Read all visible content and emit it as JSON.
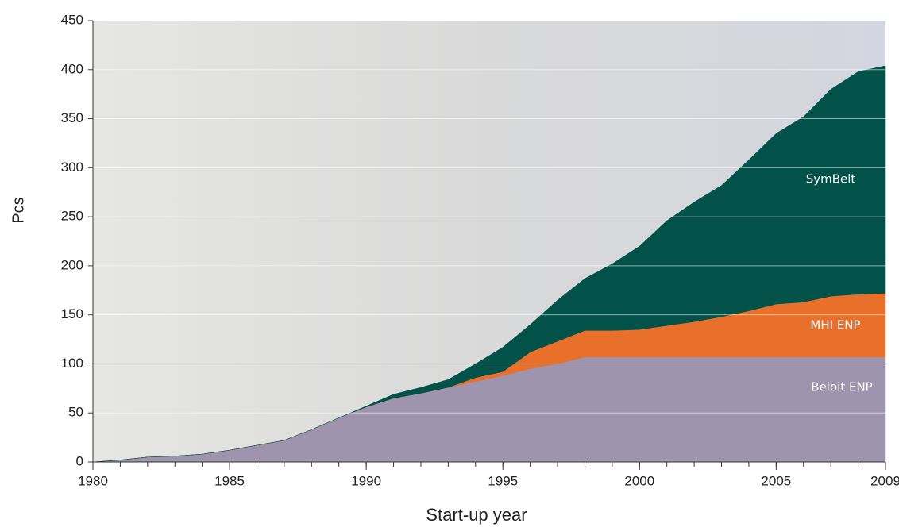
{
  "chart_data": {
    "type": "stacked_area",
    "x_label": "Start-up year",
    "y_label": "Pcs",
    "x": [
      1980,
      1981,
      1982,
      1983,
      1984,
      1985,
      1986,
      1987,
      1988,
      1989,
      1990,
      1991,
      1992,
      1993,
      1994,
      1995,
      1996,
      1997,
      1998,
      1999,
      2000,
      2001,
      2002,
      2003,
      2004,
      2005,
      2006,
      2007,
      2008,
      2009
    ],
    "series": [
      {
        "name": "Beloit ENP",
        "color": "#9f94ae",
        "values": [
          0,
          2,
          5,
          6,
          8,
          12,
          17,
          22,
          33,
          45,
          56,
          65,
          70,
          76,
          82,
          88,
          95,
          100,
          107,
          107,
          107,
          107,
          107,
          107,
          107,
          107,
          107,
          107,
          107,
          107
        ]
      },
      {
        "name": "MHI ENP",
        "color": "#e8702a",
        "values": [
          0,
          0,
          0,
          0,
          0,
          0,
          0,
          0,
          0,
          0,
          0,
          0,
          0,
          0,
          4,
          4,
          17,
          23,
          27,
          27,
          28,
          32,
          36,
          41,
          47,
          54,
          56,
          62,
          64,
          65
        ]
      },
      {
        "name": "SymBelt",
        "color": "#03524a",
        "values": [
          0,
          0,
          0,
          0,
          0,
          0,
          0,
          0,
          0,
          0,
          1,
          4,
          6,
          8,
          14,
          25,
          28,
          42,
          53,
          68,
          85,
          107,
          122,
          134,
          154,
          174,
          189,
          211,
          227,
          232
        ]
      }
    ],
    "xlim": [
      1980,
      2009
    ],
    "xticks": [
      1980,
      1985,
      1990,
      1995,
      2000,
      2005,
      2009
    ],
    "ylim": [
      0,
      450
    ],
    "yticks": [
      0,
      50,
      100,
      150,
      200,
      250,
      300,
      350,
      400,
      450
    ],
    "grid": true
  }
}
